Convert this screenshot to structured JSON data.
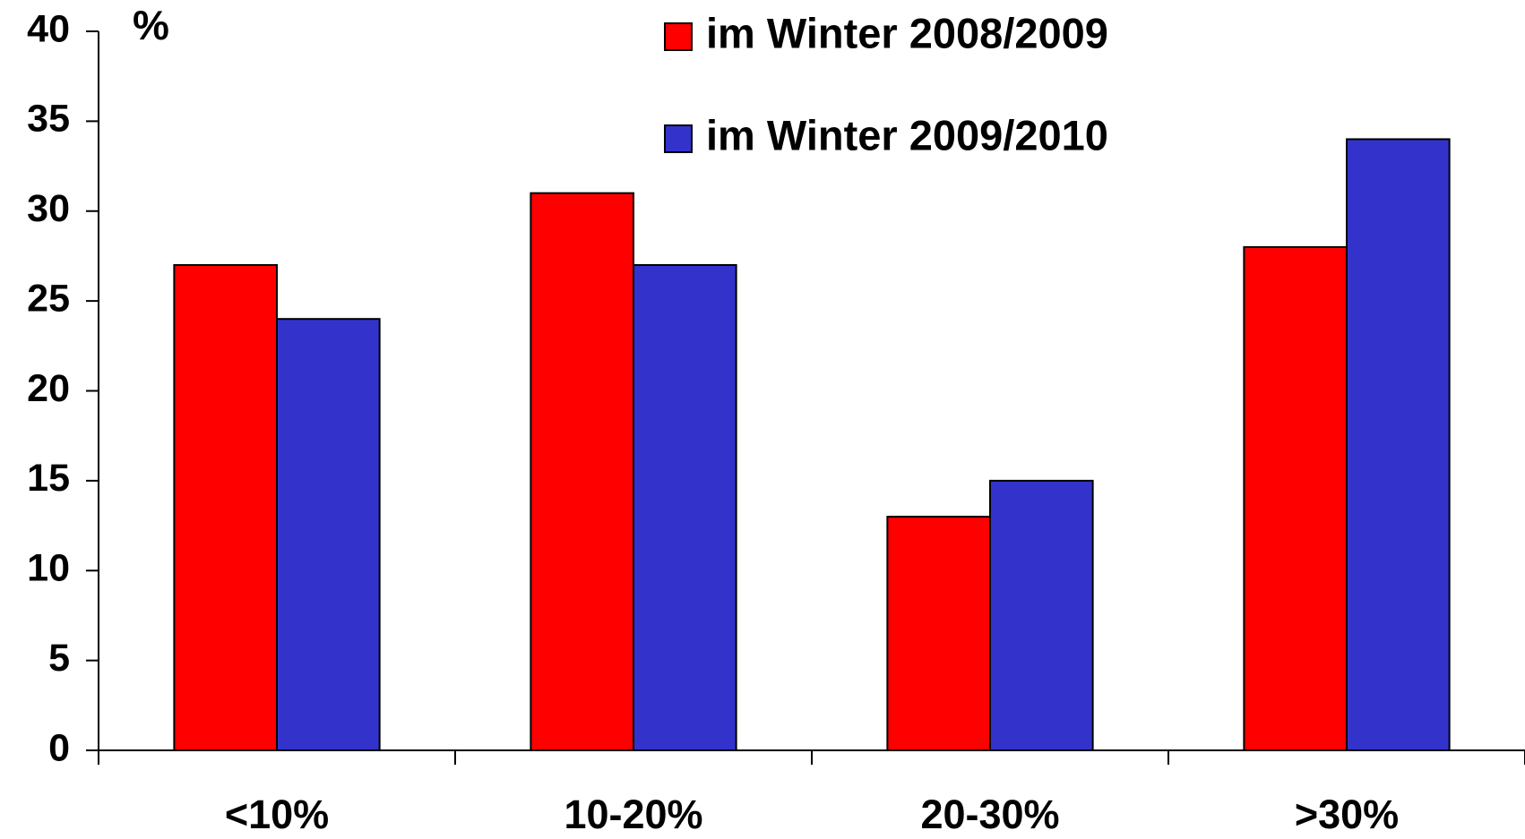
{
  "chart_data": {
    "type": "bar",
    "y_label": "%",
    "categories": [
      "<10%",
      "10-20%",
      "20-30%",
      ">30%"
    ],
    "series": [
      {
        "name": "im Winter 2008/2009",
        "color": "#ff0000",
        "values": [
          27,
          31,
          13,
          28
        ]
      },
      {
        "name": "im Winter 2009/2010",
        "color": "#3333cc",
        "values": [
          24,
          27,
          15,
          34
        ]
      }
    ],
    "ylim": [
      0,
      40
    ],
    "yticks": [
      0,
      5,
      10,
      15,
      20,
      25,
      30,
      35,
      40
    ],
    "grid": false
  }
}
